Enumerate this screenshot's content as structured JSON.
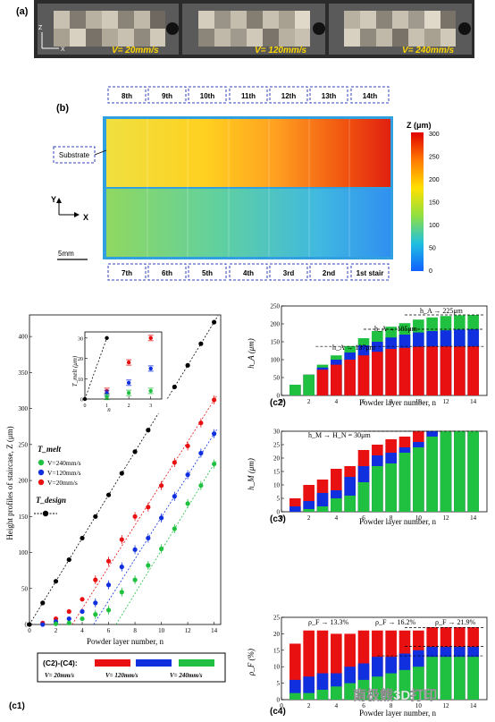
{
  "panel_a": {
    "label": "(a)",
    "axis_z": "Z",
    "axis_x": "X",
    "speeds": [
      "V= 20mm/s",
      "V= 120mm/s",
      "V= 240mm/s"
    ]
  },
  "panel_b": {
    "label": "(b)",
    "top_labels": [
      "8th",
      "9th",
      "10th",
      "11th",
      "12th",
      "13th",
      "14th"
    ],
    "bottom_labels": [
      "7th",
      "6th",
      "5th",
      "4th",
      "3rd",
      "2nd",
      "1st stair"
    ],
    "substrate_label": "Substrate",
    "colorbar_title": "Z (μm)",
    "colorbar_ticks": [
      "300",
      "250",
      "200",
      "150",
      "100",
      "50",
      "0"
    ],
    "axis_y": "Y",
    "axis_x": "X",
    "scale_bar": "5mm"
  },
  "panel_c1": {
    "label": "(c1)",
    "ylabel": "Height profiles of staircase, Z (μm)",
    "xlabel": "Powder layer number, n",
    "legend_title": "T_melt",
    "legend_items": [
      "V=240mm/s",
      "V=120mm/s",
      "V=20mm/s"
    ],
    "design_label": "T_design",
    "inset_ylabel": "T_melt (μm)",
    "inset_xlabel": "n",
    "colors": {
      "black": "#000000",
      "blue": "#1030e0",
      "red": "#e81010",
      "green": "#20c040"
    }
  },
  "panel_c2": {
    "label": "(c2)",
    "ylabel": "h_A (μm)",
    "xlabel": "Powder layer number, n",
    "annotations": [
      "h_A → 225μm",
      "h_A → 185μm",
      "h_A → 137μm"
    ]
  },
  "panel_c3": {
    "label": "(c3)",
    "ylabel": "h_M (μm)",
    "xlabel": "Powder layer number, n",
    "annotations": [
      "h_M → H_N = 30μm"
    ]
  },
  "panel_c4": {
    "label": "(c4)",
    "ylabel": "ρ_F (%)",
    "xlabel": "Powder layer number, n",
    "annotations": [
      "ρ_F → 13.3%",
      "ρ_F → 16.2%",
      "ρ_F → 21.9%"
    ],
    "watermark": "南极熊3D打印"
  },
  "bottom_legend": {
    "prefix": "(C2)-(C4):",
    "items": [
      "V= 20mm/s",
      "V= 120mm/s",
      "V= 240mm/s"
    ],
    "colors": [
      "#e81010",
      "#1030e0",
      "#20c040"
    ]
  },
  "chart_data": [
    {
      "type": "scatter",
      "id": "c1",
      "xlim": [
        0,
        14.5
      ],
      "ylim": [
        0,
        430
      ],
      "xticks": [
        0,
        2,
        4,
        6,
        8,
        10,
        12,
        14
      ],
      "yticks": [
        0,
        50,
        100,
        150,
        200,
        250,
        300,
        350,
        400
      ],
      "series": [
        {
          "name": "T_design",
          "color": "#000000",
          "x": [
            0,
            1,
            2,
            3,
            4,
            5,
            6,
            7,
            8,
            9,
            10,
            11,
            12,
            13,
            14
          ],
          "y": [
            0,
            30,
            60,
            90,
            120,
            150,
            180,
            210,
            240,
            270,
            300,
            330,
            360,
            390,
            420
          ]
        },
        {
          "name": "V=20mm/s",
          "color": "#e81010",
          "x": [
            1,
            2,
            3,
            4,
            5,
            6,
            7,
            8,
            9,
            10,
            11,
            12,
            13,
            14
          ],
          "y": [
            2,
            8,
            18,
            35,
            62,
            88,
            118,
            150,
            163,
            193,
            225,
            248,
            280,
            312
          ]
        },
        {
          "name": "V=120mm/s",
          "color": "#1030e0",
          "x": [
            1,
            2,
            3,
            4,
            5,
            6,
            7,
            8,
            9,
            10,
            11,
            12,
            13,
            14
          ],
          "y": [
            0,
            4,
            8,
            18,
            30,
            55,
            80,
            104,
            120,
            148,
            178,
            208,
            238,
            265
          ]
        },
        {
          "name": "V=240mm/s",
          "color": "#20c040",
          "x": [
            2,
            3,
            4,
            5,
            6,
            7,
            8,
            9,
            10,
            11,
            12,
            13,
            14
          ],
          "y": [
            1,
            2,
            8,
            14,
            20,
            45,
            62,
            82,
            105,
            133,
            168,
            193,
            223
          ]
        }
      ]
    },
    {
      "type": "scatter",
      "id": "c1-inset",
      "xlim": [
        0,
        3.5
      ],
      "ylim": [
        0,
        33
      ],
      "xticks": [
        0,
        1,
        2,
        3
      ],
      "yticks": [
        0,
        10,
        20,
        30
      ],
      "series": [
        {
          "name": "T_design",
          "color": "#000000",
          "x": [
            0,
            1
          ],
          "y": [
            0,
            30
          ]
        },
        {
          "name": "V=20mm/s",
          "color": "#e81010",
          "x": [
            1,
            2,
            3
          ],
          "y": [
            4,
            18,
            30
          ]
        },
        {
          "name": "V=120mm/s",
          "color": "#1030e0",
          "x": [
            1,
            2,
            3
          ],
          "y": [
            3,
            8,
            15
          ]
        },
        {
          "name": "V=240mm/s",
          "color": "#20c040",
          "x": [
            1,
            2,
            3
          ],
          "y": [
            1,
            3,
            4
          ]
        }
      ]
    },
    {
      "type": "bar",
      "id": "c2",
      "categories": [
        1,
        2,
        3,
        4,
        5,
        6,
        7,
        8,
        9,
        10,
        11,
        12,
        13,
        14
      ],
      "ylim": [
        0,
        250
      ],
      "yticks": [
        0,
        50,
        100,
        150,
        200,
        250
      ],
      "series": [
        {
          "name": "V= 20mm/s",
          "color": "#e81010",
          "values": [
            30,
            58,
            72,
            86,
            100,
            112,
            122,
            130,
            133,
            136,
            137,
            137,
            137,
            137
          ]
        },
        {
          "name": "V= 120mm/s",
          "color": "#1030e0",
          "values": [
            30,
            58,
            78,
            100,
            120,
            140,
            150,
            162,
            170,
            176,
            180,
            182,
            184,
            185
          ]
        },
        {
          "name": "V= 240mm/s",
          "color": "#20c040",
          "values": [
            30,
            58,
            86,
            112,
            138,
            160,
            180,
            192,
            202,
            212,
            218,
            222,
            224,
            225
          ]
        }
      ]
    },
    {
      "type": "bar",
      "id": "c3",
      "categories": [
        1,
        2,
        3,
        4,
        5,
        6,
        7,
        8,
        9,
        10,
        11,
        12,
        13,
        14
      ],
      "ylim": [
        0,
        30
      ],
      "yticks": [
        0,
        5,
        10,
        15,
        20,
        25,
        30
      ],
      "series": [
        {
          "name": "V= 20mm/s",
          "color": "#e81010",
          "values": [
            5,
            10,
            12,
            16,
            17,
            23,
            25,
            27,
            28,
            30,
            30,
            30,
            30,
            30
          ]
        },
        {
          "name": "V= 120mm/s",
          "color": "#1030e0",
          "values": [
            2,
            4,
            7,
            8,
            13,
            17,
            21,
            22,
            24,
            26,
            30,
            30,
            30,
            30
          ]
        },
        {
          "name": "V= 240mm/s",
          "color": "#20c040",
          "values": [
            0,
            1,
            2,
            5,
            6,
            11,
            17,
            18,
            22,
            24,
            28,
            30,
            30,
            30
          ]
        }
      ]
    },
    {
      "type": "bar",
      "id": "c4",
      "categories": [
        1,
        2,
        3,
        4,
        5,
        6,
        7,
        8,
        9,
        10,
        11,
        12,
        13,
        14
      ],
      "ylim": [
        0,
        25
      ],
      "yticks": [
        0,
        5,
        10,
        15,
        20,
        25
      ],
      "series": [
        {
          "name": "V= 20mm/s",
          "color": "#e81010",
          "values": [
            17,
            21,
            21,
            20,
            20,
            21,
            21,
            21,
            21,
            21,
            22,
            22,
            22,
            22
          ]
        },
        {
          "name": "V= 120mm/s",
          "color": "#1030e0",
          "values": [
            6,
            7,
            8,
            8,
            10,
            11,
            13,
            13,
            14,
            15,
            16,
            16,
            16,
            16
          ]
        },
        {
          "name": "V= 240mm/s",
          "color": "#20c040",
          "values": [
            2,
            2,
            3,
            4,
            5,
            6,
            7,
            8,
            9,
            10,
            13,
            13,
            13,
            13
          ]
        }
      ]
    }
  ]
}
